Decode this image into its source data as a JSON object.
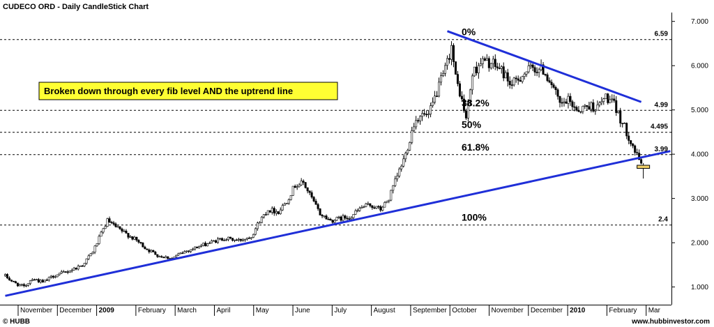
{
  "header": {
    "title": "CUDECO ORD - Daily CandleStick Chart"
  },
  "footer": {
    "copyright": "© HUBB",
    "website": "www.hubbinvestor.com"
  },
  "colors": {
    "candle": "#000000",
    "trendline": "#1f2fd8",
    "annotation_bg": "#ffff33",
    "last_candle": "#f2d26a",
    "grid": "#000000"
  },
  "chart_data": {
    "type": "candlestick",
    "title": "CUDECO ORD - Daily CandleStick Chart",
    "ylim": [
      0.6,
      7.2
    ],
    "y_ticks": [
      "1.000",
      "2.000",
      "3.000",
      "4.000",
      "5.000",
      "6.000",
      "7.000"
    ],
    "x_months": [
      "November",
      "December",
      "2009",
      "February",
      "March",
      "April",
      "May",
      "June",
      "July",
      "August",
      "September",
      "October",
      "November",
      "December",
      "2010",
      "February",
      "Mar"
    ],
    "annotation": "Broken down through every fib level AND the uptrend line",
    "fib_levels": [
      {
        "pct": "0%",
        "value": 6.59,
        "label": "6.59"
      },
      {
        "pct": "38.2%",
        "value": 4.99,
        "label": "4.99"
      },
      {
        "pct": "50%",
        "value": 4.495,
        "label": "4.495"
      },
      {
        "pct": "61.8%",
        "value": 3.99,
        "label": "3.99"
      },
      {
        "pct": "100%",
        "value": 2.4,
        "label": "2.4"
      }
    ],
    "trendlines": [
      {
        "name": "uptrend",
        "from": [
          0,
          0.8
        ],
        "to": [
          319,
          4.07
        ]
      },
      {
        "name": "downtrend",
        "from": [
          212,
          6.78
        ],
        "to": [
          305,
          5.18
        ]
      }
    ],
    "anchors": [
      [
        0,
        1.25
      ],
      [
        4,
        1.1
      ],
      [
        9,
        1.0
      ],
      [
        13,
        1.2
      ],
      [
        18,
        1.1
      ],
      [
        23,
        1.25
      ],
      [
        30,
        1.35
      ],
      [
        37,
        1.5
      ],
      [
        42,
        1.8
      ],
      [
        46,
        2.2
      ],
      [
        49,
        2.5
      ],
      [
        53,
        2.35
      ],
      [
        58,
        2.2
      ],
      [
        63,
        2.05
      ],
      [
        68,
        1.85
      ],
      [
        74,
        1.7
      ],
      [
        80,
        1.65
      ],
      [
        86,
        1.8
      ],
      [
        92,
        1.9
      ],
      [
        98,
        2.0
      ],
      [
        105,
        2.1
      ],
      [
        112,
        2.05
      ],
      [
        118,
        2.15
      ],
      [
        122,
        2.5
      ],
      [
        126,
        2.75
      ],
      [
        131,
        2.7
      ],
      [
        135,
        2.95
      ],
      [
        139,
        3.3
      ],
      [
        143,
        3.35
      ],
      [
        147,
        3.0
      ],
      [
        151,
        2.65
      ],
      [
        156,
        2.5
      ],
      [
        161,
        2.55
      ],
      [
        166,
        2.6
      ],
      [
        171,
        2.8
      ],
      [
        175,
        2.85
      ],
      [
        180,
        2.75
      ],
      [
        184,
        3.0
      ],
      [
        188,
        3.5
      ],
      [
        192,
        4.0
      ],
      [
        196,
        4.7
      ],
      [
        199,
        4.9
      ],
      [
        203,
        4.85
      ],
      [
        207,
        5.4
      ],
      [
        211,
        5.9
      ],
      [
        214,
        6.45
      ],
      [
        216,
        5.7
      ],
      [
        218,
        5.4
      ],
      [
        221,
        4.8
      ],
      [
        224,
        5.8
      ],
      [
        228,
        6.1
      ],
      [
        233,
        6.05
      ],
      [
        238,
        5.9
      ],
      [
        243,
        5.55
      ],
      [
        248,
        5.8
      ],
      [
        253,
        5.95
      ],
      [
        258,
        5.9
      ],
      [
        262,
        5.6
      ],
      [
        266,
        5.1
      ],
      [
        270,
        5.2
      ],
      [
        275,
        5.0
      ],
      [
        280,
        5.1
      ],
      [
        284,
        5.05
      ],
      [
        288,
        5.3
      ],
      [
        292,
        5.1
      ],
      [
        296,
        4.7
      ],
      [
        300,
        4.3
      ],
      [
        303,
        3.95
      ],
      [
        306,
        3.75
      ]
    ],
    "last_candle": {
      "index": 306,
      "open": 3.75,
      "high": 3.8,
      "low": 3.45,
      "close": 3.68
    }
  }
}
